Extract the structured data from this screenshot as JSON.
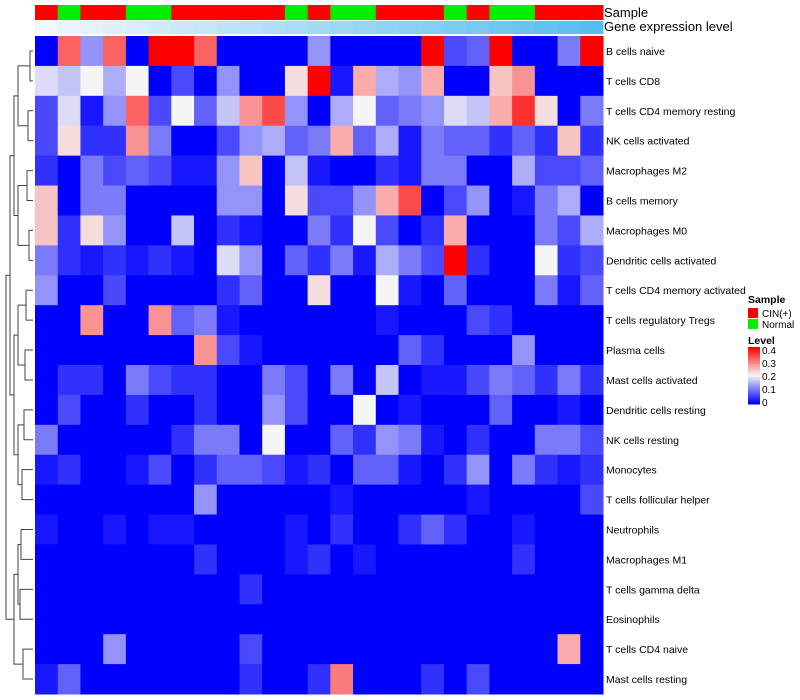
{
  "chart_data": {
    "type": "heatmap",
    "title": "",
    "annotations": {
      "sample_label": "Sample",
      "expression_label": "Gene expression level",
      "sample_groups": [
        "CIN(+)",
        "Normal",
        "CIN(+)",
        "CIN(+)",
        "Normal",
        "Normal",
        "CIN(+)",
        "CIN(+)",
        "CIN(+)",
        "CIN(+)",
        "CIN(+)",
        "Normal",
        "CIN(+)",
        "Normal",
        "Normal",
        "CIN(+)",
        "CIN(+)",
        "CIN(+)",
        "Normal",
        "CIN(+)",
        "Normal",
        "Normal",
        "CIN(+)",
        "CIN(+)",
        "CIN(+)"
      ],
      "expression_level": [
        0.02,
        0.06,
        0.1,
        0.14,
        0.18,
        0.22,
        0.26,
        0.3,
        0.34,
        0.38,
        0.42,
        0.46,
        0.5,
        0.54,
        0.58,
        0.62,
        0.66,
        0.7,
        0.74,
        0.78,
        0.82,
        0.86,
        0.9,
        0.94,
        0.98
      ]
    },
    "row_labels": [
      "B cells naive",
      "T cells CD8",
      "T cells CD4 memory resting",
      "NK cells activated",
      "Macrophages M2",
      "B cells memory",
      "Macrophages M0",
      "Dendritic cells activated",
      "T cells CD4 memory activated",
      "T cells regulatory  Tregs",
      "Plasma cells",
      "Mast cells activated",
      "Dendritic cells resting",
      "NK cells resting",
      "Monocytes",
      "T cells follicular helper",
      "Neutrophils",
      "Macrophages M1",
      "T cells gamma delta",
      "Eosinophils",
      "T cells CD4 naive",
      "Mast cells resting"
    ],
    "values": [
      [
        0.0,
        0.32,
        0.12,
        0.32,
        0.0,
        0.4,
        0.4,
        0.32,
        0.0,
        0.0,
        0.0,
        0.0,
        0.12,
        0.0,
        0.0,
        0.0,
        0.0,
        0.4,
        0.06,
        0.08,
        0.4,
        0.0,
        0.0,
        0.1,
        0.4
      ],
      [
        0.18,
        0.16,
        0.2,
        0.14,
        0.2,
        0.0,
        0.06,
        0.0,
        0.12,
        0.0,
        0.0,
        0.22,
        0.4,
        0.02,
        0.26,
        0.14,
        0.12,
        0.26,
        0.0,
        0.0,
        0.24,
        0.28,
        0.0,
        0.0,
        0.0
      ],
      [
        0.06,
        0.18,
        0.02,
        0.12,
        0.32,
        0.06,
        0.2,
        0.08,
        0.16,
        0.28,
        0.34,
        0.12,
        0.0,
        0.14,
        0.2,
        0.08,
        0.1,
        0.12,
        0.18,
        0.16,
        0.26,
        0.36,
        0.22,
        0.0,
        0.1
      ],
      [
        0.06,
        0.22,
        0.04,
        0.04,
        0.28,
        0.1,
        0.0,
        0.0,
        0.06,
        0.12,
        0.14,
        0.08,
        0.1,
        0.26,
        0.08,
        0.14,
        0.02,
        0.1,
        0.08,
        0.08,
        0.04,
        0.08,
        0.04,
        0.24,
        0.04
      ],
      [
        0.04,
        0.0,
        0.1,
        0.06,
        0.08,
        0.06,
        0.02,
        0.02,
        0.12,
        0.24,
        0.0,
        0.16,
        0.02,
        0.0,
        0.0,
        0.04,
        0.02,
        0.1,
        0.1,
        0.0,
        0.0,
        0.14,
        0.06,
        0.06,
        0.08
      ],
      [
        0.24,
        0.0,
        0.1,
        0.1,
        0.0,
        0.0,
        0.0,
        0.0,
        0.12,
        0.12,
        0.0,
        0.22,
        0.06,
        0.06,
        0.12,
        0.26,
        0.34,
        0.0,
        0.06,
        0.12,
        0.0,
        0.02,
        0.1,
        0.14,
        0.0
      ],
      [
        0.24,
        0.04,
        0.22,
        0.12,
        0.0,
        0.0,
        0.16,
        0.0,
        0.04,
        0.02,
        0.0,
        0.0,
        0.1,
        0.04,
        0.2,
        0.06,
        0.0,
        0.04,
        0.26,
        0.0,
        0.0,
        0.0,
        0.1,
        0.06,
        0.14
      ],
      [
        0.1,
        0.04,
        0.02,
        0.04,
        0.02,
        0.04,
        0.02,
        0.0,
        0.18,
        0.12,
        0.0,
        0.08,
        0.04,
        0.1,
        0.02,
        0.14,
        0.1,
        0.06,
        0.4,
        0.04,
        0.0,
        0.0,
        0.2,
        0.04,
        0.06
      ],
      [
        0.12,
        0.0,
        0.0,
        0.06,
        0.0,
        0.0,
        0.0,
        0.0,
        0.04,
        0.08,
        0.0,
        0.0,
        0.22,
        0.0,
        0.0,
        0.2,
        0.02,
        0.0,
        0.08,
        0.0,
        0.0,
        0.0,
        0.1,
        0.02,
        0.08
      ],
      [
        0.0,
        0.0,
        0.28,
        0.0,
        0.0,
        0.28,
        0.08,
        0.1,
        0.02,
        0.0,
        0.0,
        0.0,
        0.0,
        0.0,
        0.0,
        0.02,
        0.0,
        0.0,
        0.0,
        0.06,
        0.04,
        0.0,
        0.0,
        0.0,
        0.0
      ],
      [
        0.0,
        0.0,
        0.0,
        0.0,
        0.0,
        0.0,
        0.0,
        0.28,
        0.06,
        0.02,
        0.0,
        0.0,
        0.0,
        0.0,
        0.0,
        0.0,
        0.08,
        0.04,
        0.0,
        0.0,
        0.0,
        0.12,
        0.0,
        0.0,
        0.0
      ],
      [
        0.0,
        0.04,
        0.04,
        0.0,
        0.1,
        0.06,
        0.04,
        0.04,
        0.0,
        0.0,
        0.1,
        0.06,
        0.0,
        0.1,
        0.0,
        0.16,
        0.0,
        0.02,
        0.02,
        0.06,
        0.1,
        0.08,
        0.04,
        0.1,
        0.04
      ],
      [
        0.0,
        0.06,
        0.0,
        0.0,
        0.04,
        0.0,
        0.0,
        0.04,
        0.0,
        0.0,
        0.12,
        0.06,
        0.0,
        0.0,
        0.2,
        0.0,
        0.02,
        0.0,
        0.0,
        0.0,
        0.08,
        0.0,
        0.0,
        0.02,
        0.0
      ],
      [
        0.1,
        0.0,
        0.0,
        0.0,
        0.0,
        0.0,
        0.04,
        0.1,
        0.1,
        0.0,
        0.2,
        0.0,
        0.0,
        0.08,
        0.04,
        0.12,
        0.1,
        0.02,
        0.0,
        0.04,
        0.0,
        0.0,
        0.1,
        0.1,
        0.06
      ],
      [
        0.02,
        0.04,
        0.0,
        0.0,
        0.02,
        0.06,
        0.0,
        0.04,
        0.08,
        0.08,
        0.06,
        0.02,
        0.04,
        0.0,
        0.08,
        0.08,
        0.02,
        0.0,
        0.04,
        0.12,
        0.0,
        0.1,
        0.04,
        0.02,
        0.04
      ],
      [
        0.0,
        0.0,
        0.0,
        0.0,
        0.0,
        0.0,
        0.0,
        0.12,
        0.0,
        0.0,
        0.0,
        0.0,
        0.0,
        0.02,
        0.0,
        0.0,
        0.0,
        0.0,
        0.0,
        0.02,
        0.0,
        0.0,
        0.0,
        0.0,
        0.06
      ],
      [
        0.02,
        0.0,
        0.0,
        0.02,
        0.0,
        0.02,
        0.02,
        0.0,
        0.0,
        0.0,
        0.0,
        0.02,
        0.0,
        0.04,
        0.0,
        0.0,
        0.04,
        0.08,
        0.04,
        0.0,
        0.0,
        0.02,
        0.0,
        0.0,
        0.0
      ],
      [
        0.0,
        0.0,
        0.0,
        0.0,
        0.0,
        0.0,
        0.0,
        0.04,
        0.0,
        0.0,
        0.0,
        0.02,
        0.04,
        0.0,
        0.02,
        0.0,
        0.0,
        0.0,
        0.0,
        0.0,
        0.0,
        0.04,
        0.0,
        0.0,
        0.0
      ],
      [
        0.0,
        0.0,
        0.0,
        0.0,
        0.0,
        0.0,
        0.0,
        0.0,
        0.0,
        0.04,
        0.0,
        0.0,
        0.0,
        0.0,
        0.0,
        0.0,
        0.0,
        0.0,
        0.0,
        0.0,
        0.0,
        0.0,
        0.0,
        0.0,
        0.0
      ],
      [
        0.0,
        0.0,
        0.0,
        0.0,
        0.0,
        0.0,
        0.0,
        0.0,
        0.0,
        0.0,
        0.0,
        0.0,
        0.0,
        0.0,
        0.0,
        0.0,
        0.0,
        0.0,
        0.0,
        0.0,
        0.0,
        0.0,
        0.0,
        0.0,
        0.0
      ],
      [
        0.0,
        0.0,
        0.0,
        0.12,
        0.0,
        0.0,
        0.0,
        0.0,
        0.0,
        0.06,
        0.0,
        0.0,
        0.0,
        0.0,
        0.0,
        0.0,
        0.0,
        0.0,
        0.0,
        0.0,
        0.0,
        0.0,
        0.0,
        0.26,
        0.0
      ],
      [
        0.02,
        0.08,
        0.0,
        0.0,
        0.0,
        0.0,
        0.0,
        0.0,
        0.0,
        0.04,
        0.0,
        0.0,
        0.04,
        0.3,
        0.0,
        0.0,
        0.0,
        0.04,
        0.0,
        0.06,
        0.0,
        0.0,
        0.0,
        0.0,
        0.0
      ]
    ],
    "legend": {
      "sample_title": "Sample",
      "sample_entries": [
        {
          "label": "CIN(+)",
          "color": "#ff0000"
        },
        {
          "label": "Normal",
          "color": "#00ee00"
        }
      ],
      "level_title": "Level",
      "level_ticks": [
        "0.4",
        "0.3",
        "0.2",
        "0.1",
        "0"
      ],
      "level_range": [
        0,
        0.4
      ]
    },
    "colors": {
      "low": "#0000ff",
      "mid": "#f5f5f5",
      "high": "#ff0000",
      "expression_low": "#f4f8fb",
      "expression_high": "#55bbee"
    },
    "dendrogram": "row clustering tree"
  }
}
